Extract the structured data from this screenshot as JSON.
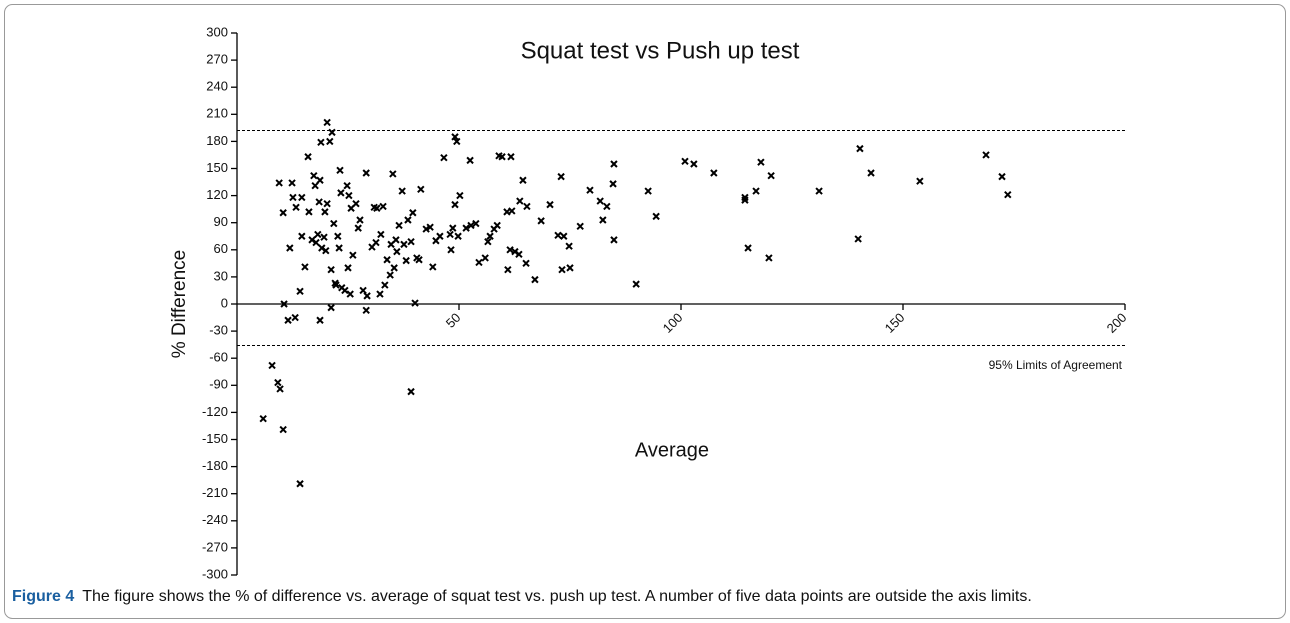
{
  "chart_data": {
    "type": "scatter",
    "title": "Squat test vs Push up test",
    "xlabel": "Average",
    "ylabel": "% Difference",
    "xlim": [
      0,
      200
    ],
    "xticks": [
      50,
      100,
      150,
      200
    ],
    "ylim": [
      -300,
      300
    ],
    "yticks": [
      300,
      270,
      240,
      210,
      180,
      150,
      120,
      90,
      60,
      30,
      0,
      -30,
      -60,
      -90,
      -120,
      -150,
      -180,
      -210,
      -240,
      -270,
      -300
    ],
    "hlines": [
      192,
      -46
    ],
    "annotation": "95% Limits of Agreement",
    "color": "#000000",
    "x": [
      5.9,
      7.9,
      9.2,
      9.7,
      10.4,
      14.2,
      9.5,
      10.4,
      10.6,
      11.5,
      13.1,
      11.9,
      12.4,
      12.6,
      13.3,
      14.6,
      14.2,
      14.6,
      15.3,
      16.0,
      16.2,
      16.9,
      17.3,
      17.6,
      17.8,
      18.2,
      18.5,
      18.7,
      18.7,
      18.9,
      19.1,
      19.6,
      19.8,
      20.0,
      20.3,
      20.3,
      20.9,
      21.2,
      21.4,
      21.2,
      21.8,
      22.1,
      22.3,
      22.7,
      23.0,
      23.2,
      23.4,
      23.6,
      24.3,
      24.8,
      25.0,
      25.2,
      25.5,
      25.7,
      26.1,
      26.8,
      27.3,
      27.7,
      28.4,
      29.1,
      29.3,
      29.1,
      30.4,
      30.9,
      31.3,
      31.5,
      32.2,
      32.4,
      32.9,
      33.3,
      33.8,
      34.5,
      34.7,
      35.1,
      35.4,
      35.8,
      36.0,
      36.5,
      37.2,
      37.6,
      38.1,
      38.5,
      39.2,
      39.2,
      39.6,
      40.1,
      40.5,
      41.0,
      41.4,
      42.6,
      43.5,
      44.1,
      44.8,
      45.7,
      46.6,
      48.0,
      48.2,
      48.6,
      49.1,
      49.1,
      49.5,
      49.8,
      50.2,
      51.6,
      52.5,
      52.7,
      53.8,
      54.5,
      55.9,
      56.5,
      57.0,
      57.9,
      58.6,
      59.0,
      59.7,
      60.8,
      61.0,
      61.5,
      61.7,
      61.9,
      62.6,
      63.5,
      63.7,
      64.4,
      65.1,
      65.3,
      67.1,
      68.5,
      70.5,
      72.3,
      73.0,
      73.2,
      73.6,
      74.8,
      75.0,
      77.3,
      79.5,
      81.8,
      82.4,
      83.3,
      84.7,
      84.9,
      84.9,
      89.9,
      92.6,
      94.4,
      100.9,
      102.9,
      107.4,
      114.4,
      114.4,
      115.1,
      116.9,
      118.0,
      120.3,
      119.8,
      131.1,
      139.9,
      140.3,
      142.8,
      153.8,
      168.7,
      172.3,
      173.6
    ],
    "values": [
      -127,
      -68,
      -87,
      -94,
      -139,
      -199,
      134,
      101,
      0,
      -18,
      -15,
      62,
      134,
      118,
      107,
      118,
      14,
      75,
      41,
      163,
      102,
      71,
      142,
      131,
      68,
      77,
      113,
      137,
      -18,
      179,
      62,
      74,
      102,
      59,
      201,
      111,
      180,
      38,
      190,
      -4,
      89,
      23,
      21,
      75,
      62,
      148,
      123,
      18,
      15,
      131,
      40,
      120,
      11,
      106,
      54,
      111,
      84,
      93,
      15,
      -7,
      9,
      145,
      63,
      107,
      68,
      106,
      11,
      77,
      108,
      21,
      49,
      32,
      66,
      144,
      40,
      71,
      58,
      87,
      125,
      66,
      48,
      93,
      69,
      -97,
      101,
      1,
      51,
      49,
      127,
      83,
      85,
      41,
      70,
      75,
      162,
      77,
      60,
      84,
      185,
      110,
      180,
      75,
      120,
      84,
      159,
      87,
      89,
      46,
      51,
      69,
      75,
      83,
      87,
      164,
      163,
      102,
      38,
      60,
      163,
      103,
      58,
      55,
      114,
      137,
      45,
      108,
      27,
      92,
      110,
      76,
      141,
      38,
      75,
      64,
      40,
      86,
      126,
      114,
      93,
      108,
      133,
      155,
      71,
      22,
      125,
      97,
      158,
      155,
      145,
      118,
      115,
      62,
      125,
      157,
      142,
      51,
      125,
      72,
      172,
      145,
      136,
      165,
      141,
      121
    ]
  },
  "figure": {
    "label": "Figure 4",
    "caption": "The figure shows the % of difference vs. average of squat test vs. push up test. A number of five data points are outside the axis limits."
  }
}
